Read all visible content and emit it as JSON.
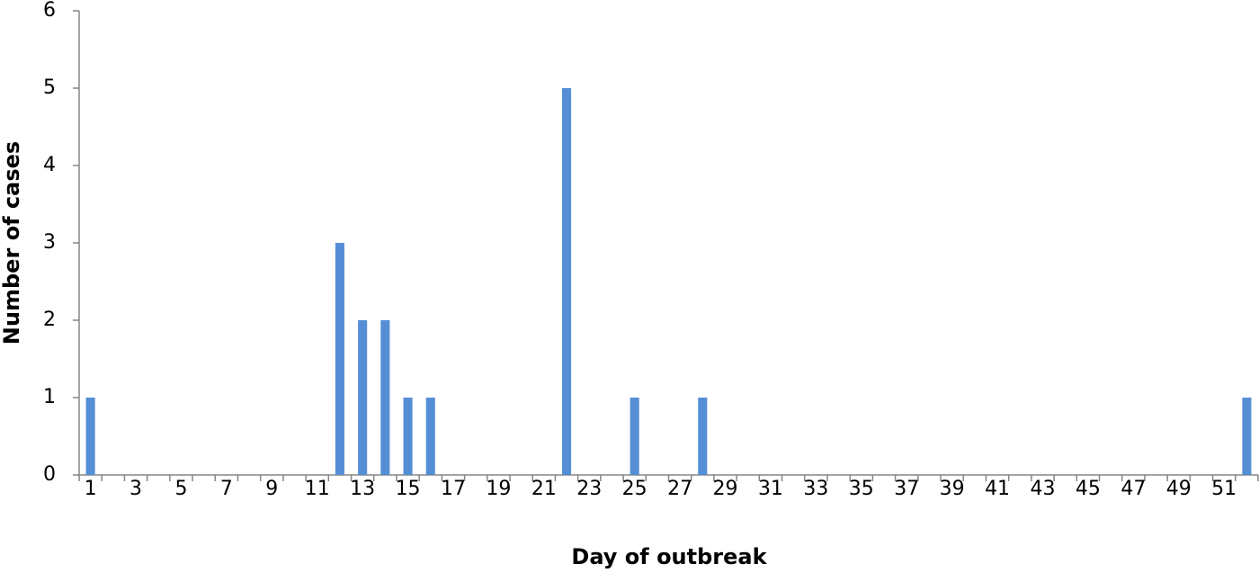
{
  "chart_data": {
    "type": "bar",
    "x_label": "Day of outbreak",
    "y_label": "Number of cases",
    "categories": [
      "1",
      null,
      "3",
      null,
      "5",
      null,
      "7",
      null,
      "9",
      null,
      "11",
      null,
      "13",
      null,
      "15",
      null,
      "17",
      null,
      "19",
      null,
      "21",
      null,
      "23",
      null,
      "25",
      null,
      "27",
      null,
      "29",
      null,
      "31",
      null,
      "33",
      null,
      "35",
      null,
      "37",
      null,
      "39",
      null,
      "41",
      null,
      "43",
      null,
      "45",
      null,
      "47",
      null,
      "49",
      null,
      "51",
      null
    ],
    "values": [
      1,
      0,
      0,
      0,
      0,
      0,
      0,
      0,
      0,
      0,
      0,
      3,
      2,
      2,
      1,
      1,
      0,
      0,
      0,
      0,
      0,
      5,
      0,
      0,
      1,
      0,
      0,
      1,
      0,
      0,
      0,
      0,
      0,
      0,
      0,
      0,
      0,
      0,
      0,
      0,
      0,
      0,
      0,
      0,
      0,
      0,
      0,
      0,
      0,
      0,
      0,
      1
    ],
    "color": "#558ed5",
    "ylim": [
      0,
      6
    ],
    "yticks": [
      0,
      1,
      2,
      3,
      4,
      5,
      6
    ],
    "grid": false
  }
}
